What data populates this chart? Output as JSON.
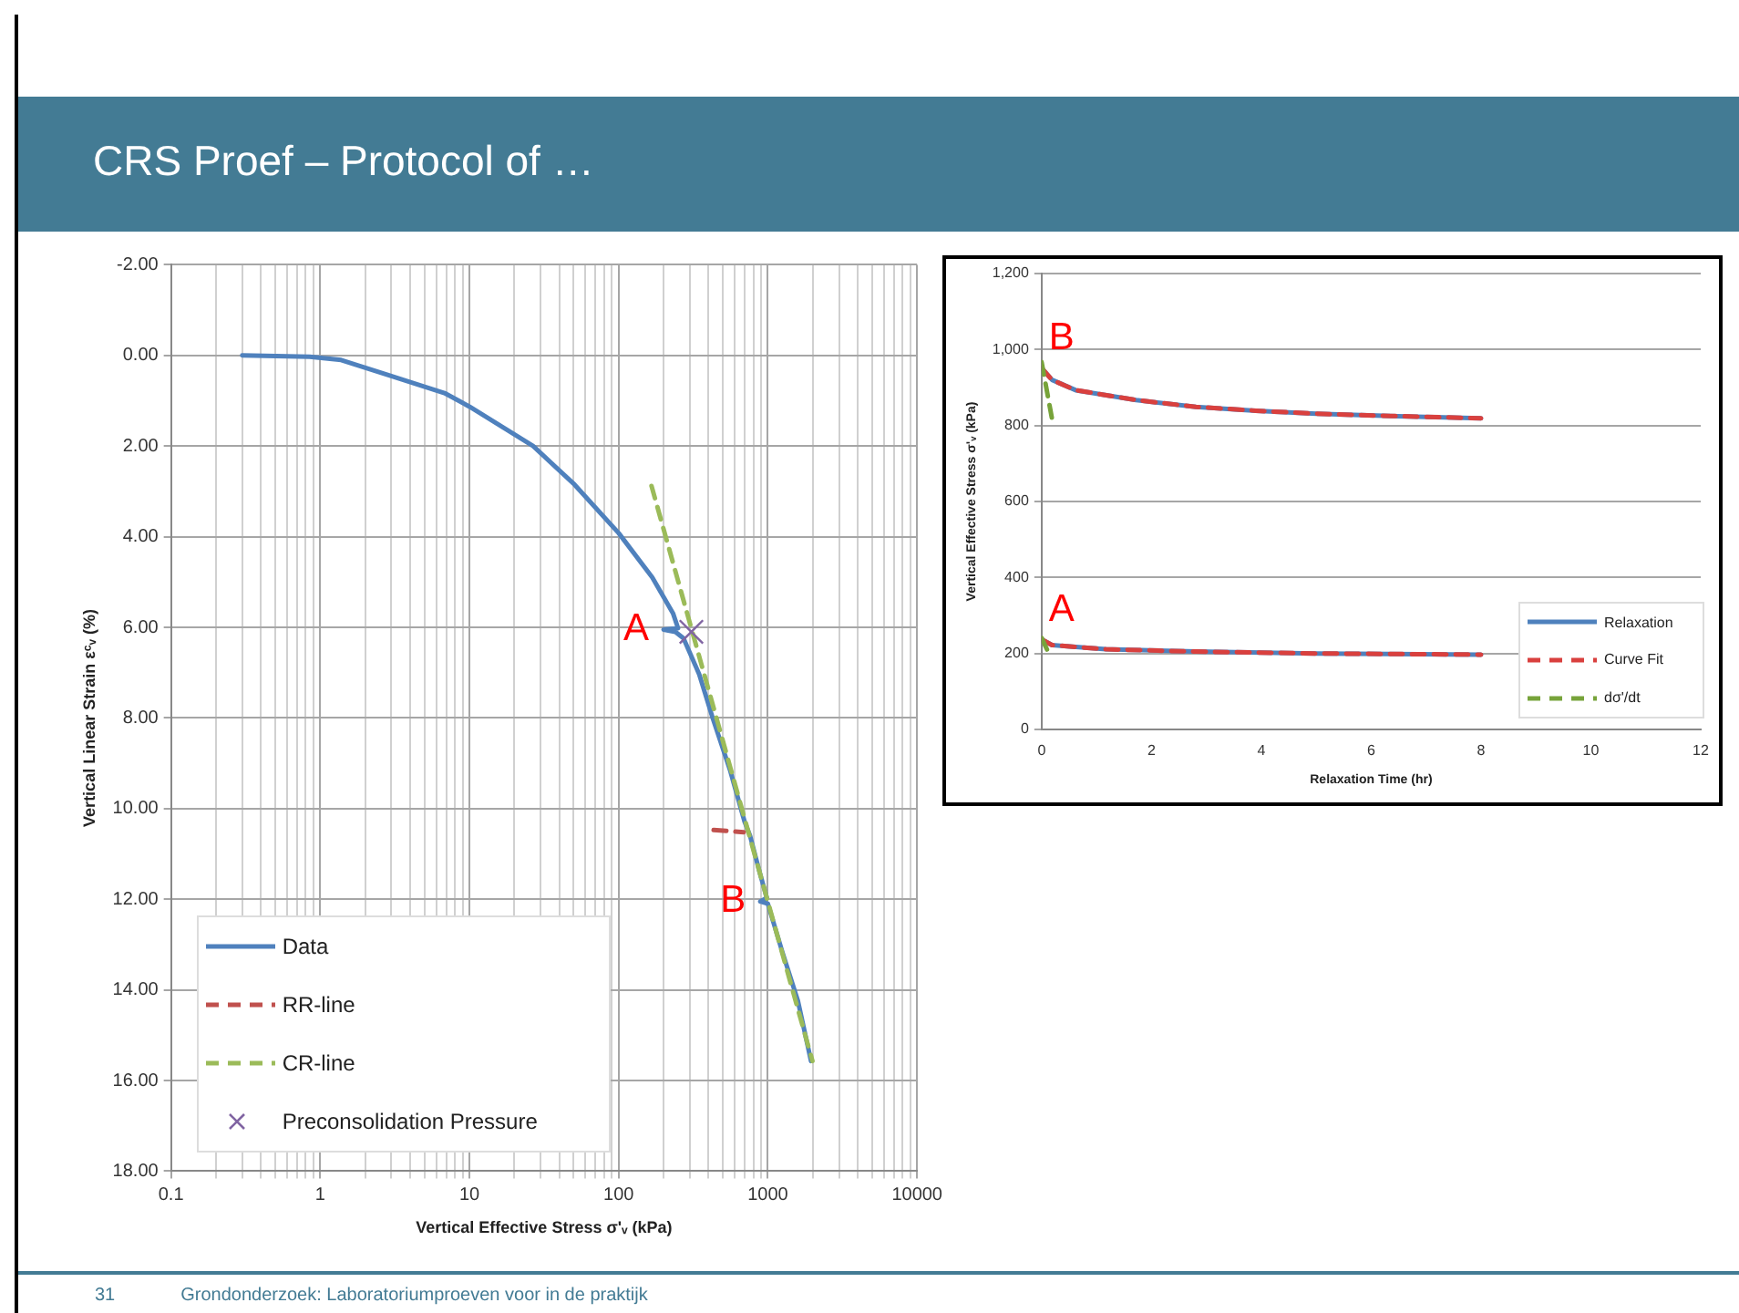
{
  "chart_data": [
    {
      "type": "line",
      "title": "CRS Proef – Protocol of …",
      "xlabel": "Vertical Effective Stress σ'ᵥ (kPa)",
      "ylabel": "Vertical Linear Strain εᶜᵥ (%)",
      "log": "x",
      "grid": true,
      "legend": "bottom left",
      "xlim": [
        0.1,
        10000
      ],
      "ylim": [
        18,
        -2
      ],
      "xticks": [
        0.1,
        {
          "value": 0.2,
          "label": null
        },
        {
          "value": 0.3,
          "label": null
        },
        {
          "value": 0.4,
          "label": null
        },
        {
          "value": 0.5,
          "label": null
        },
        {
          "value": 0.6,
          "label": null
        },
        {
          "value": 0.7,
          "label": null
        },
        {
          "value": 0.8,
          "label": null
        },
        {
          "value": 0.9,
          "label": null
        },
        1,
        {
          "value": 2,
          "label": null
        },
        {
          "value": 3,
          "label": null
        },
        {
          "value": 4,
          "label": null
        },
        {
          "value": 5,
          "label": null
        },
        {
          "value": 6,
          "label": null
        },
        {
          "value": 7,
          "label": null
        },
        {
          "value": 8,
          "label": null
        },
        {
          "value": 9,
          "label": null
        },
        10,
        {
          "value": 20,
          "label": null
        },
        {
          "value": 30,
          "label": null
        },
        {
          "value": 40,
          "label": null
        },
        {
          "value": 50,
          "label": null
        },
        {
          "value": 60,
          "label": null
        },
        {
          "value": 70,
          "label": null
        },
        {
          "value": 80,
          "label": null
        },
        {
          "value": 90,
          "label": null
        },
        100,
        {
          "value": 200,
          "label": null
        },
        {
          "value": 300,
          "label": null
        },
        {
          "value": 400,
          "label": null
        },
        {
          "value": 500,
          "label": null
        },
        {
          "value": 600,
          "label": null
        },
        {
          "value": 700,
          "label": null
        },
        {
          "value": 800,
          "label": null
        },
        {
          "value": 900,
          "label": null
        },
        1000,
        {
          "value": 2000,
          "label": null
        },
        {
          "value": 3000,
          "label": null
        },
        {
          "value": 4000,
          "label": null
        },
        {
          "value": 5000,
          "label": null
        },
        {
          "value": 6000,
          "label": null
        },
        {
          "value": 7000,
          "label": null
        },
        {
          "value": 8000,
          "label": null
        },
        {
          "value": 9000,
          "label": null
        },
        10000
      ],
      "yticks": [
        {
          "value": -2,
          "label": "-2.00"
        },
        {
          "value": 0,
          "label": "0.00"
        },
        {
          "value": 2,
          "label": "2.00"
        },
        {
          "value": 4,
          "label": "4.00"
        },
        {
          "value": 6,
          "label": "6.00"
        },
        {
          "value": 8,
          "label": "8.00"
        },
        {
          "value": 10,
          "label": "10.00"
        },
        {
          "value": 12,
          "label": "12.00"
        },
        {
          "value": 14,
          "label": "14.00"
        },
        {
          "value": 16,
          "label": "16.00"
        },
        {
          "value": 18,
          "label": "18.00"
        }
      ],
      "series": [
        {
          "name": "Data",
          "color": "#4f81bd",
          "marker": "none",
          "line_style": "solid",
          "x": [
            0.3,
            0.85,
            1.38,
            2.83,
            6.8,
            10,
            26.7,
            50.6,
            100,
            168,
            232,
            250,
            200,
            240,
            272,
            347,
            424,
            560,
            700,
            760,
            880,
            984,
            890,
            1000,
            1252,
            1589,
            1947
          ],
          "values": [
            0,
            0.03,
            0.1,
            0.43,
            0.83,
            1.13,
            2.0,
            2.85,
            3.92,
            4.9,
            5.7,
            6.02,
            6.05,
            6.1,
            6.24,
            7.04,
            7.97,
            9.17,
            10.3,
            10.6,
            11.4,
            11.97,
            12.05,
            12.1,
            13.17,
            14.24,
            15.57
          ]
        },
        {
          "name": "RR-line",
          "color": "#c0504d",
          "marker": "none",
          "line_style": "dashed",
          "x": [
            433,
            690
          ],
          "values": [
            10.47,
            10.52
          ]
        },
        {
          "name": "CR-line",
          "color": "#9bbb59",
          "marker": "none",
          "line_style": "dashed",
          "x": [
            166,
            1990
          ],
          "values": [
            2.88,
            15.57
          ]
        },
        {
          "name": "Preconsolidation Pressure",
          "type": "scatter",
          "color": "#8064a2",
          "marker": "cross",
          "x": [
            307
          ],
          "values": [
            6.1
          ]
        }
      ],
      "annotations": [
        {
          "text": "A",
          "x": 200,
          "y": 6.05
        },
        {
          "text": "B",
          "x": 890,
          "y": 12.05
        },
        "31",
        "Grondonderzoek: Laboratoriumproeven voor in de praktijk"
      ]
    },
    {
      "type": "line",
      "xlabel": "Relaxation Time (hr)",
      "ylabel": "Vertical Effective Stress σ'ᵥ (kPa)",
      "grid": "y",
      "legend": "bottom right",
      "xlim": [
        0,
        12
      ],
      "ylim": [
        0,
        1200
      ],
      "xticks": [
        0,
        2,
        4,
        6,
        8,
        10,
        12
      ],
      "yticks": [
        0,
        200,
        400,
        600,
        800,
        {
          "value": 1000,
          "label": "1,000"
        },
        {
          "value": 1200,
          "label": "1,200"
        }
      ],
      "series": [
        {
          "name": "Relaxation",
          "color": "#4f81bd",
          "marker": "none",
          "line_style": "solid",
          "x": [
            0,
            0.19,
            0.62,
            1.72,
            2.81,
            3.9,
            5.0,
            6.1,
            8.0,
            null,
            0,
            0.19,
            1.17,
            2.81,
            5.0,
            8.0
          ],
          "values": [
            951,
            920,
            893,
            867,
            849,
            839,
            831,
            826,
            819,
            null,
            237,
            222,
            211,
            205,
            200,
            197
          ]
        },
        {
          "name": "Curve Fit",
          "color": "#d9403e",
          "marker": "none",
          "line_style": "dashed",
          "x": [
            0,
            0.19,
            0.62,
            1.72,
            2.81,
            3.9,
            5.0,
            6.1,
            8.0,
            null,
            0,
            0.19,
            1.17,
            2.81,
            5.0,
            8.0
          ],
          "values": [
            951,
            920,
            893,
            867,
            849,
            839,
            831,
            826,
            819,
            null,
            237,
            222,
            211,
            205,
            200,
            197
          ]
        },
        {
          "name": "dσ'/dt",
          "color": "#77a33a",
          "marker": "none",
          "line_style": "dashed",
          "x": [
            0,
            0.2,
            null,
            0,
            0.16
          ],
          "values": [
            967,
            809,
            null,
            241,
            191
          ]
        }
      ],
      "annotations": [
        {
          "text": "B",
          "x": 0,
          "y": 951
        },
        {
          "text": "A",
          "x": 0,
          "y": 237
        }
      ]
    }
  ]
}
